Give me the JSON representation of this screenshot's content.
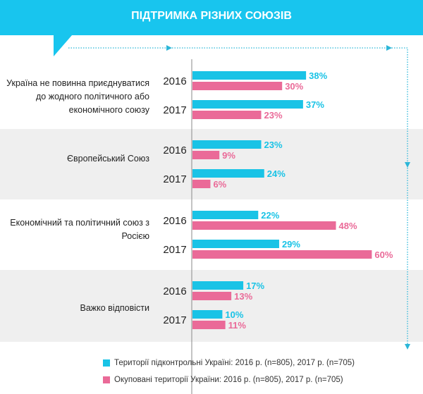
{
  "title": "ПІДТРИМКА РІЗНИХ СОЮЗІВ",
  "colors": {
    "accent": "#18c5ee",
    "controlled": "#19c3e6",
    "occupied": "#ea6a98",
    "band": "#efefef"
  },
  "chart_data": {
    "type": "bar",
    "orientation": "horizontal",
    "title": "ПІДТРИМКА РІЗНИХ СОЮЗІВ",
    "categories": [
      "Україна не повинна приєднуватися до жодного політичного або економічного союзу",
      "Європейський Союз",
      "Економічний та політичний союз з Росією",
      "Важко відповісти"
    ],
    "years": [
      "2016",
      "2017"
    ],
    "series": [
      {
        "name": "Території підконтрольні Україні:  2016 р. (n=805), 2017 р. (n=705)",
        "color": "#19c3e6",
        "values": {
          "2016": [
            38,
            23,
            22,
            17
          ],
          "2017": [
            37,
            24,
            29,
            10
          ]
        }
      },
      {
        "name": "Окуповані території України: 2016 р. (n=805), 2017 р. (n=705)",
        "color": "#ea6a98",
        "values": {
          "2016": [
            30,
            9,
            48,
            13
          ],
          "2017": [
            23,
            6,
            60,
            11
          ]
        }
      }
    ],
    "unit": "%",
    "legend": "bottom"
  }
}
